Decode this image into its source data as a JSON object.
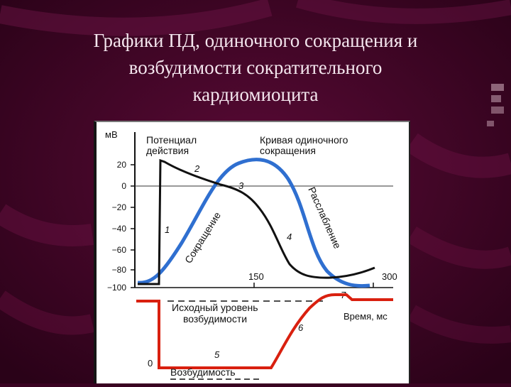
{
  "slide": {
    "title_lines": [
      "Графики ПД, одиночного сокращения и",
      "возбудимости  сократительного",
      "кардиомиоцита"
    ]
  },
  "diagram": {
    "y_axis_unit": "мВ",
    "y_ticks": [
      "20",
      "0",
      "−20",
      "−40",
      "−60",
      "−80",
      "−100"
    ],
    "label_pd": [
      "Потенциал",
      "действия"
    ],
    "label_contraction_curve": [
      "Кривая одиночного",
      "сокращения"
    ],
    "label_contraction": "Сокращение",
    "label_relaxation": "Расслабление",
    "mark_150": "150",
    "mark_300": "300",
    "phase_numbers": [
      "1",
      "2",
      "3",
      "4",
      "5",
      "6",
      "7"
    ],
    "label_baseline": [
      "Исходный уровень",
      "возбудимости"
    ],
    "label_time": "Время, мс",
    "label_zero": "0",
    "label_excitability": "Возбудимость",
    "colors": {
      "background": "#3a0322",
      "action_potential": "#111111",
      "contraction": "#2f6fd0",
      "excitability": "#d9200f",
      "panel": "#ffffff"
    }
  }
}
